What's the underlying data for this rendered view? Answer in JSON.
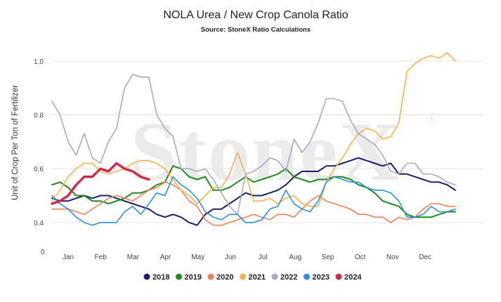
{
  "chart_data": {
    "type": "line",
    "title": "NOLA Urea / New Crop Canola Ratio",
    "subtitle": "Source: StoneX Ratio Calculations",
    "ylabel": "Unit of Crop Per Ton of Fertilizer",
    "xlabel": "",
    "ylim": [
      0.35,
      1.07
    ],
    "yticks": [
      0.4,
      0.6,
      0.8,
      1.0
    ],
    "ytick_labels": [
      "0.4",
      "0.6",
      "0.8",
      "1.0"
    ],
    "y_zero_label": "0",
    "x_tick_labels": [
      "Jan",
      "Feb",
      "Mar",
      "Apr",
      "May",
      "Jun",
      "Jul",
      "Aug",
      "Sep",
      "Oct",
      "Nov",
      "Dec"
    ],
    "watermark": "StoneX",
    "grid": true,
    "legend_position": "bottom",
    "series": [
      {
        "name": "2018",
        "color": "#1a1f6b",
        "width": 2,
        "values": [
          0.49,
          0.48,
          0.48,
          0.49,
          0.5,
          0.49,
          0.5,
          0.5,
          0.49,
          0.48,
          0.47,
          0.46,
          0.45,
          0.43,
          0.42,
          0.43,
          0.42,
          0.4,
          0.39,
          0.43,
          0.45,
          0.45,
          0.47,
          0.49,
          0.51,
          0.5,
          0.5,
          0.51,
          0.52,
          0.54,
          0.57,
          0.59,
          0.59,
          0.59,
          0.61,
          0.61,
          0.62,
          0.63,
          0.64,
          0.63,
          0.62,
          0.61,
          0.62,
          0.58,
          0.58,
          0.57,
          0.56,
          0.55,
          0.55,
          0.54,
          0.52
        ]
      },
      {
        "name": "2019",
        "color": "#1f8a1f",
        "width": 2,
        "values": [
          0.54,
          0.55,
          0.53,
          0.5,
          0.5,
          0.48,
          0.48,
          0.47,
          0.48,
          0.49,
          0.51,
          0.51,
          0.52,
          0.54,
          0.55,
          0.61,
          0.6,
          0.57,
          0.56,
          0.57,
          0.52,
          0.52,
          0.53,
          0.55,
          0.57,
          0.55,
          0.56,
          0.57,
          0.58,
          0.6,
          0.57,
          0.56,
          0.55,
          0.56,
          0.56,
          0.57,
          0.57,
          0.56,
          0.54,
          0.53,
          0.51,
          0.48,
          0.47,
          0.46,
          0.43,
          0.42,
          0.42,
          0.42,
          0.43,
          0.44,
          0.44
        ]
      },
      {
        "name": "2020",
        "color": "#f08050",
        "width": 1.6,
        "values": [
          0.45,
          0.45,
          0.45,
          0.44,
          0.43,
          0.45,
          0.47,
          0.49,
          0.5,
          0.49,
          0.48,
          0.5,
          0.52,
          0.53,
          0.55,
          0.54,
          0.52,
          0.48,
          0.46,
          0.41,
          0.39,
          0.39,
          0.4,
          0.41,
          0.42,
          0.43,
          0.42,
          0.41,
          0.43,
          0.43,
          0.42,
          0.45,
          0.48,
          0.5,
          0.48,
          0.47,
          0.46,
          0.45,
          0.43,
          0.43,
          0.42,
          0.42,
          0.4,
          0.42,
          0.41,
          0.42,
          0.45,
          0.47,
          0.47,
          0.46,
          0.46
        ]
      },
      {
        "name": "2021",
        "color": "#f7b14a",
        "width": 1.6,
        "values": [
          0.48,
          0.52,
          0.57,
          0.6,
          0.62,
          0.62,
          0.59,
          0.58,
          0.59,
          0.6,
          0.62,
          0.63,
          0.63,
          0.62,
          0.6,
          0.56,
          0.52,
          0.5,
          0.47,
          0.5,
          0.53,
          0.53,
          0.58,
          0.66,
          0.58,
          0.48,
          0.48,
          0.49,
          0.47,
          0.49,
          0.5,
          0.47,
          0.46,
          0.46,
          0.55,
          0.6,
          0.64,
          0.69,
          0.73,
          0.75,
          0.74,
          0.71,
          0.72,
          0.77,
          0.96,
          0.99,
          1.01,
          1.02,
          1.01,
          1.03,
          1.0
        ]
      },
      {
        "name": "2022",
        "color": "#a7a8cc",
        "width": 1.6,
        "values": [
          0.85,
          0.8,
          0.7,
          0.65,
          0.73,
          0.64,
          0.62,
          0.7,
          0.75,
          0.9,
          0.95,
          0.94,
          0.94,
          0.8,
          0.75,
          0.72,
          0.6,
          0.6,
          0.59,
          0.6,
          0.56,
          0.51,
          0.46,
          0.43,
          0.58,
          0.59,
          0.61,
          0.64,
          0.63,
          0.59,
          0.71,
          0.66,
          0.7,
          0.77,
          0.86,
          0.86,
          0.85,
          0.78,
          0.73,
          0.71,
          0.69,
          0.65,
          0.59,
          0.58,
          0.62,
          0.62,
          0.58,
          0.58,
          0.57,
          0.55,
          0.54
        ]
      },
      {
        "name": "2023",
        "color": "#2b8fe0",
        "width": 1.6,
        "values": [
          0.5,
          0.47,
          0.45,
          0.42,
          0.4,
          0.39,
          0.4,
          0.4,
          0.4,
          0.44,
          0.46,
          0.43,
          0.47,
          0.51,
          0.5,
          0.57,
          0.54,
          0.52,
          0.49,
          0.44,
          0.42,
          0.41,
          0.43,
          0.43,
          0.4,
          0.4,
          0.41,
          0.45,
          0.46,
          0.52,
          0.47,
          0.45,
          0.44,
          0.48,
          0.55,
          0.57,
          0.56,
          0.55,
          0.55,
          0.53,
          0.52,
          0.52,
          0.51,
          0.48,
          0.42,
          0.42,
          0.43,
          0.46,
          0.44,
          0.44,
          0.45
        ]
      },
      {
        "name": "2024",
        "color": "#cc2a4c",
        "width": 3.4,
        "values": [
          0.47,
          0.48,
          0.5,
          0.54,
          0.57,
          0.57,
          0.6,
          0.59,
          0.62,
          0.6,
          0.59,
          0.57,
          0.56
        ]
      }
    ]
  }
}
